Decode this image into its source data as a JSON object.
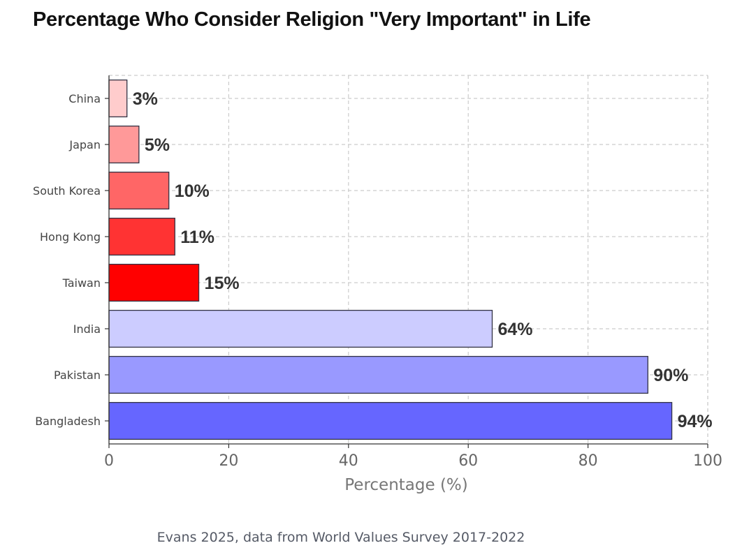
{
  "chart_data": {
    "type": "bar",
    "orientation": "horizontal",
    "title": "Percentage Who Consider Religion \"Very Important\" in Life",
    "xlabel": "Percentage (%)",
    "ylabel": "",
    "xlim": [
      0,
      100
    ],
    "x_ticks": [
      0,
      20,
      40,
      60,
      80,
      100
    ],
    "grid": true,
    "categories": [
      "China",
      "Japan",
      "South Korea",
      "Hong Kong",
      "Taiwan",
      "India",
      "Pakistan",
      "Bangladesh"
    ],
    "values": [
      3,
      5,
      10,
      11,
      15,
      64,
      90,
      94
    ],
    "data_labels": [
      "3%",
      "5%",
      "10%",
      "11%",
      "15%",
      "64%",
      "90%",
      "94%"
    ],
    "colors": [
      "#ffcccc",
      "#ff9999",
      "#ff6666",
      "#ff3333",
      "#ff0000",
      "#ccccff",
      "#9999ff",
      "#6666ff"
    ],
    "caption": "Evans 2025, data from World Values Survey 2017-2022"
  }
}
